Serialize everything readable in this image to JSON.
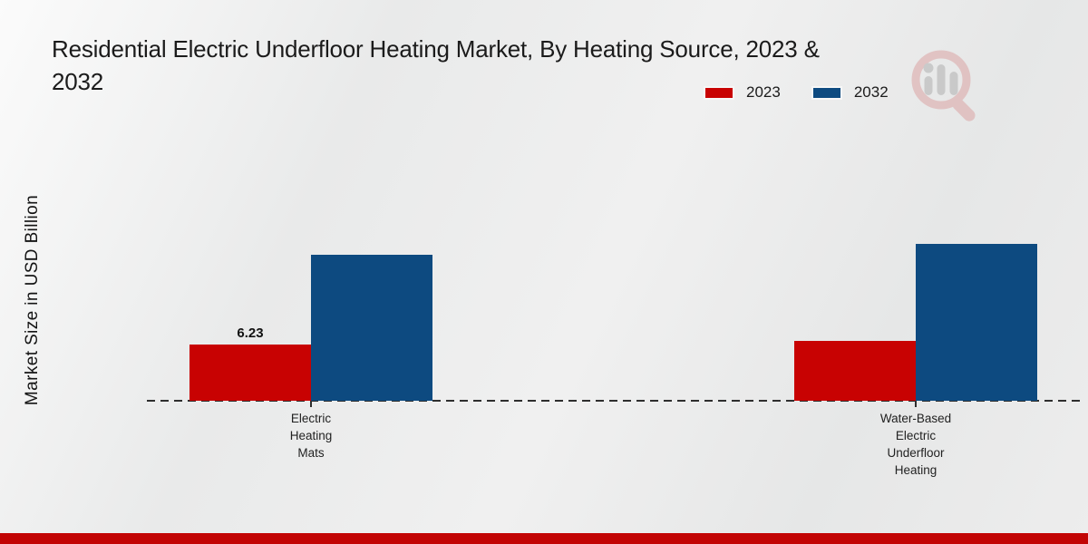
{
  "header": {
    "title": "Residential Electric Underfloor Heating Market, By Heating Source, 2023 & 2032",
    "title_lines": [
      "Residential Electric Underfloor Heating Market, By Heating Source, 2023 &",
      "2032"
    ]
  },
  "legend": {
    "items": [
      {
        "label": "2023",
        "color": "#c80202"
      },
      {
        "label": "2032",
        "color": "#0d4a80"
      }
    ]
  },
  "watermark_icon": "market-research-future-magnifier-logo",
  "chart_data": {
    "type": "bar",
    "title": "Residential Electric Underfloor Heating Market, By Heating Source, 2023 & 2032",
    "xlabel": "",
    "ylabel": "Market Size in USD Billion",
    "categories": [
      "Electric Heating Mats",
      "Water-Based Electric Underfloor Heating"
    ],
    "categories_display_lines": [
      [
        "Electric",
        "Heating",
        "Mats"
      ],
      [
        "Water-Based",
        "Electric",
        "Underfloor",
        "Heating"
      ]
    ],
    "series": [
      {
        "name": "2023",
        "color": "#c80202",
        "values": [
          6.23,
          6.6
        ]
      },
      {
        "name": "2032",
        "color": "#0d4a80",
        "values": [
          16.2,
          17.4
        ]
      }
    ],
    "value_labels": [
      {
        "series": "2023",
        "category": "Electric Heating Mats",
        "text": "6.23"
      }
    ],
    "ylim": [
      0,
      20
    ],
    "grid": false,
    "axis_tick_numbers_shown": false,
    "baseline_style": "dashed",
    "legend_position": "top-right"
  },
  "footer": {
    "accent_bar_color": "#c20404"
  }
}
